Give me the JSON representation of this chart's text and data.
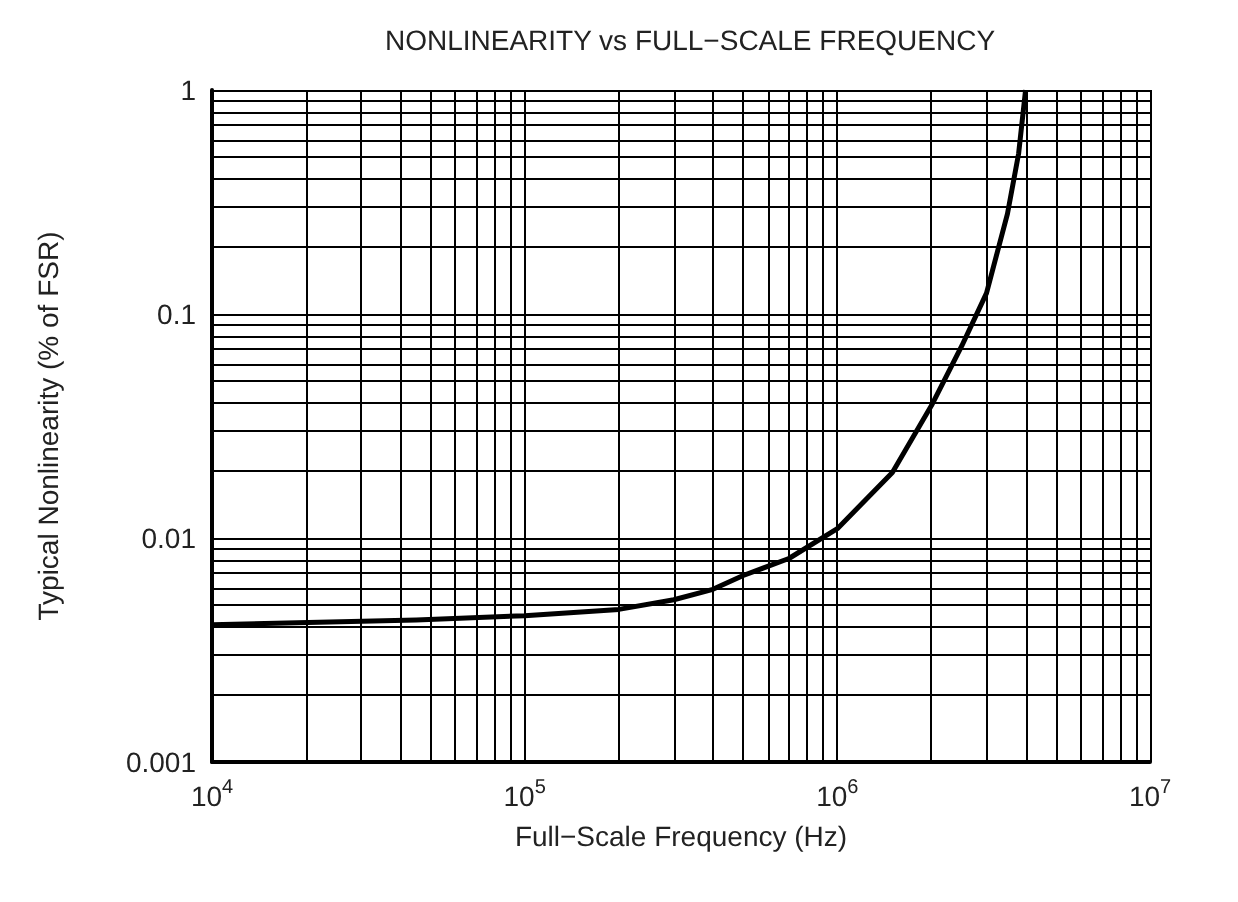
{
  "chart_data": {
    "type": "line",
    "title": "NONLINEARITY vs FULL−SCALE FREQUENCY",
    "xlabel": "Full−Scale Frequency (Hz)",
    "ylabel": "Typical Nonlinearity (% of FSR)",
    "series": [
      {
        "color": "#000000",
        "x": [
          10000,
          45000,
          100000,
          200000,
          300000,
          400000,
          500000,
          700000,
          1000000,
          1500000,
          2000000,
          2500000,
          3000000,
          3500000,
          3800000,
          4000000
        ],
        "values": [
          0.0041,
          0.0043,
          0.0045,
          0.0048,
          0.0053,
          0.0059,
          0.0068,
          0.0081,
          0.011,
          0.0196,
          0.039,
          0.072,
          0.124,
          0.28,
          0.52,
          1.0
        ]
      }
    ],
    "log": "xy",
    "xlim": [
      10000,
      10000000
    ],
    "ylim": [
      0.001,
      1
    ],
    "xticks": [
      {
        "value": 10000,
        "label": "10$^{4}$"
      },
      {
        "value": 100000,
        "label": "10$^{5}$"
      },
      {
        "value": 1000000,
        "label": "10$^{6}$"
      },
      {
        "value": 10000000,
        "label": "10$^{7}$"
      }
    ],
    "yticks": [
      0.001,
      0.01,
      0.1,
      1
    ],
    "grid": true,
    "marker": "none",
    "line_style": "solid"
  }
}
